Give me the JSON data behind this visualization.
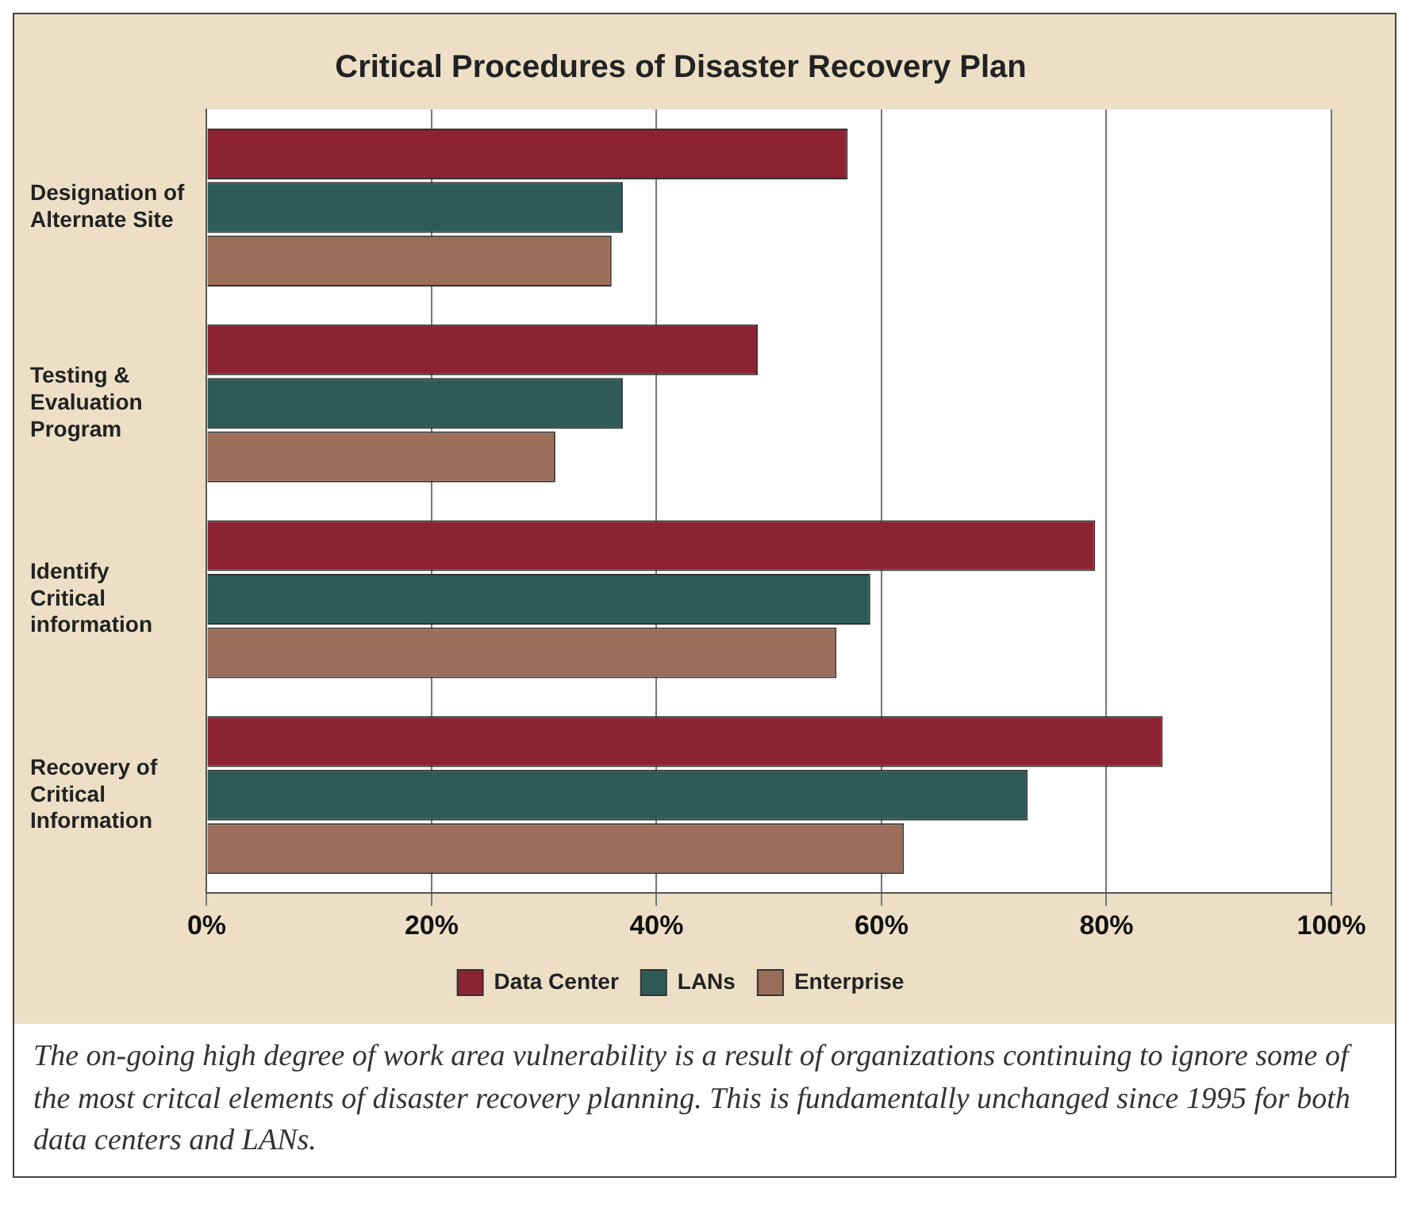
{
  "chart_data": {
    "type": "bar",
    "orientation": "horizontal",
    "title": "Critical Procedures of Disaster Recovery Plan",
    "categories": [
      "Designation of Alternate Site",
      "Testing & Evaluation Program",
      "Identify Critical information",
      "Recovery of Critical Information"
    ],
    "series": [
      {
        "name": "Data Center",
        "color": "#8b2332",
        "values": [
          57,
          49,
          79,
          85
        ]
      },
      {
        "name": "LANs",
        "color": "#2e5a57",
        "values": [
          37,
          37,
          59,
          73
        ]
      },
      {
        "name": "Enterprise",
        "color": "#9a6e5a",
        "values": [
          36,
          31,
          56,
          62
        ]
      }
    ],
    "xlim": [
      0,
      100
    ],
    "xticks": [
      {
        "value": 0,
        "label": "0%"
      },
      {
        "value": 20,
        "label": "20%"
      },
      {
        "value": 40,
        "label": "40%"
      },
      {
        "value": 60,
        "label": "60%"
      },
      {
        "value": 80,
        "label": "80%"
      },
      {
        "value": 100,
        "label": "100%"
      }
    ],
    "grid": "x",
    "legend": "bottom",
    "annotations": [
      "The on-going high degree of work area vulnerability is a result of organizations continuing to ignore some of the most critcal elements of disaster recovery planning. This is fundamentally unchanged since 1995 for both data centers and LANs."
    ]
  }
}
